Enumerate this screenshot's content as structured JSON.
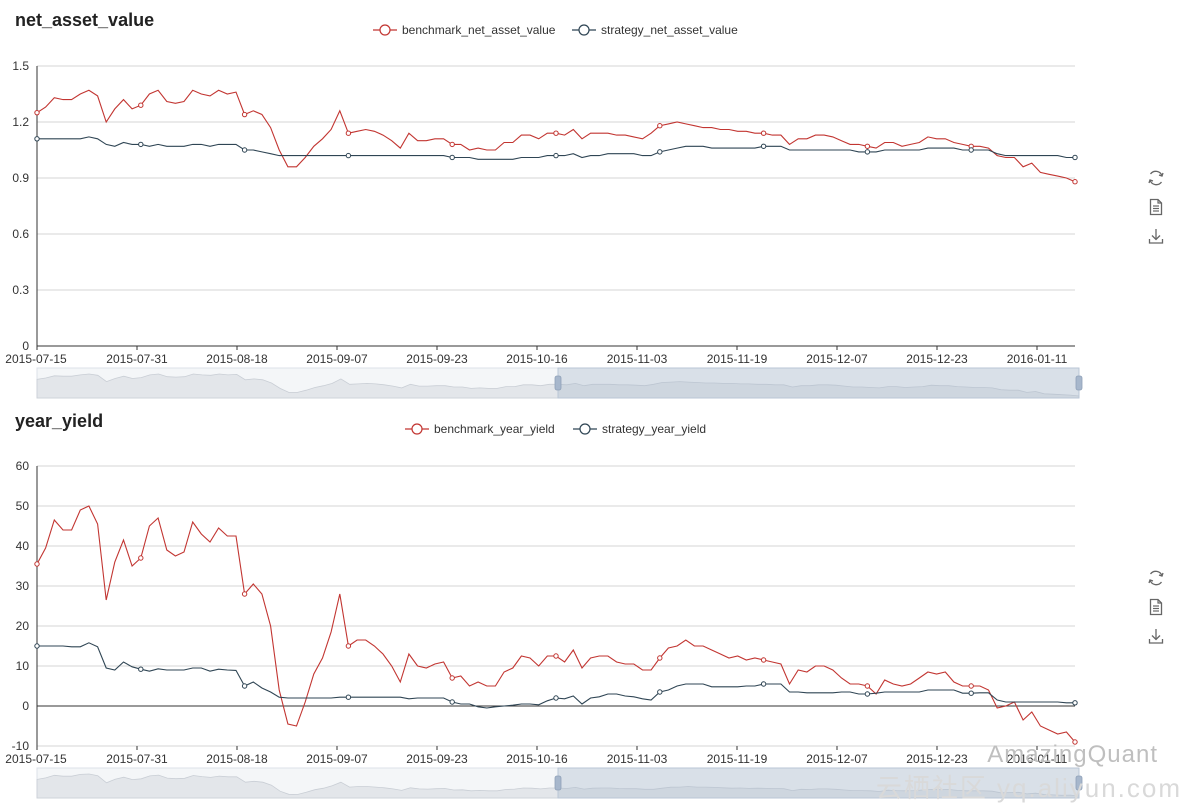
{
  "chart_data": [
    {
      "type": "line",
      "title": "net_asset_value",
      "xlabel": "",
      "ylabel": "",
      "ylim": [
        0,
        1.5
      ],
      "yticks": [
        0,
        0.3,
        0.6,
        0.9,
        1.2,
        1.5
      ],
      "x_tick_labels": [
        "2015-07-15",
        "2015-07-31",
        "2015-08-18",
        "2015-09-07",
        "2015-09-23",
        "2015-10-16",
        "2015-11-03",
        "2015-11-19",
        "2015-12-07",
        "2015-12-23",
        "2016-01-11"
      ],
      "grid": true,
      "legend_position": "top-center",
      "series": [
        {
          "name": "benchmark_net_asset_value",
          "color": "#c23531",
          "values": [
            1.25,
            1.28,
            1.33,
            1.32,
            1.32,
            1.35,
            1.37,
            1.34,
            1.2,
            1.27,
            1.32,
            1.27,
            1.29,
            1.35,
            1.37,
            1.31,
            1.3,
            1.31,
            1.37,
            1.35,
            1.34,
            1.37,
            1.35,
            1.36,
            1.24,
            1.26,
            1.24,
            1.17,
            1.05,
            0.96,
            0.96,
            1.01,
            1.07,
            1.11,
            1.16,
            1.26,
            1.14,
            1.15,
            1.16,
            1.15,
            1.13,
            1.1,
            1.06,
            1.14,
            1.1,
            1.1,
            1.11,
            1.11,
            1.08,
            1.08,
            1.05,
            1.06,
            1.05,
            1.05,
            1.09,
            1.09,
            1.13,
            1.13,
            1.11,
            1.14,
            1.14,
            1.13,
            1.16,
            1.11,
            1.14,
            1.14,
            1.14,
            1.13,
            1.13,
            1.12,
            1.11,
            1.14,
            1.18,
            1.19,
            1.2,
            1.19,
            1.18,
            1.17,
            1.17,
            1.16,
            1.16,
            1.15,
            1.15,
            1.14,
            1.14,
            1.13,
            1.13,
            1.08,
            1.11,
            1.11,
            1.13,
            1.13,
            1.12,
            1.1,
            1.08,
            1.08,
            1.07,
            1.06,
            1.09,
            1.09,
            1.07,
            1.08,
            1.09,
            1.12,
            1.11,
            1.11,
            1.09,
            1.08,
            1.07,
            1.07,
            1.06,
            1.02,
            1.01,
            1.01,
            0.96,
            0.98,
            0.93,
            0.92,
            0.91,
            0.9,
            0.88
          ]
        },
        {
          "name": "strategy_net_asset_value",
          "color": "#2f4554",
          "values": [
            1.11,
            1.11,
            1.11,
            1.11,
            1.11,
            1.11,
            1.12,
            1.11,
            1.08,
            1.07,
            1.09,
            1.08,
            1.08,
            1.07,
            1.08,
            1.07,
            1.07,
            1.07,
            1.08,
            1.08,
            1.07,
            1.08,
            1.08,
            1.08,
            1.05,
            1.05,
            1.04,
            1.03,
            1.02,
            1.02,
            1.02,
            1.02,
            1.02,
            1.02,
            1.02,
            1.02,
            1.02,
            1.02,
            1.02,
            1.02,
            1.02,
            1.02,
            1.02,
            1.02,
            1.02,
            1.02,
            1.02,
            1.02,
            1.01,
            1.01,
            1.01,
            1.0,
            1.0,
            1.0,
            1.0,
            1.0,
            1.01,
            1.01,
            1.01,
            1.02,
            1.02,
            1.02,
            1.03,
            1.01,
            1.02,
            1.02,
            1.03,
            1.03,
            1.03,
            1.03,
            1.02,
            1.02,
            1.04,
            1.05,
            1.06,
            1.07,
            1.07,
            1.07,
            1.06,
            1.06,
            1.06,
            1.06,
            1.06,
            1.06,
            1.07,
            1.07,
            1.07,
            1.05,
            1.05,
            1.05,
            1.05,
            1.05,
            1.05,
            1.05,
            1.05,
            1.04,
            1.04,
            1.04,
            1.05,
            1.05,
            1.05,
            1.05,
            1.05,
            1.06,
            1.06,
            1.06,
            1.06,
            1.05,
            1.05,
            1.05,
            1.05,
            1.03,
            1.02,
            1.02,
            1.02,
            1.02,
            1.02,
            1.02,
            1.02,
            1.01,
            1.01
          ]
        }
      ]
    },
    {
      "type": "line",
      "title": "year_yield",
      "xlabel": "",
      "ylabel": "",
      "ylim": [
        -10,
        60
      ],
      "yticks": [
        -10,
        0,
        10,
        20,
        30,
        40,
        50,
        60
      ],
      "x_tick_labels": [
        "2015-07-15",
        "2015-07-31",
        "2015-08-18",
        "2015-09-07",
        "2015-09-23",
        "2015-10-16",
        "2015-11-03",
        "2015-11-19",
        "2015-12-07",
        "2015-12-23",
        "2016-01-11"
      ],
      "grid": true,
      "legend_position": "top-center",
      "series": [
        {
          "name": "benchmark_year_yield",
          "color": "#c23531",
          "values": [
            35.5,
            39.5,
            46.5,
            44,
            44,
            49,
            50,
            45.5,
            26.5,
            36,
            41.5,
            35,
            37,
            45,
            47,
            39,
            37.5,
            38.5,
            46,
            43,
            41,
            44.5,
            42.5,
            42.5,
            28,
            30.5,
            28,
            20,
            4,
            -4.5,
            -5,
            1,
            8,
            12,
            18.5,
            28,
            15,
            16.5,
            16.5,
            15,
            13,
            10,
            6,
            13,
            10,
            9.5,
            10.5,
            11,
            7,
            7.5,
            5,
            6,
            5,
            5,
            8.5,
            9.5,
            12.5,
            12,
            10,
            12.5,
            12.5,
            11,
            14,
            9.5,
            12,
            12.5,
            12.5,
            11,
            10.5,
            10.5,
            9,
            9,
            12,
            14.5,
            15,
            16.5,
            15,
            15,
            14,
            13,
            12,
            12.5,
            11.5,
            12,
            11.5,
            11,
            10.5,
            5.5,
            9,
            8.5,
            10,
            10,
            9,
            7,
            5.5,
            5.5,
            5,
            3,
            6.5,
            5.5,
            5,
            5.5,
            7,
            8.5,
            8,
            8.5,
            6,
            5,
            5,
            5,
            4,
            -0.5,
            0,
            1,
            -3.5,
            -1.5,
            -5,
            -6,
            -7,
            -6.5,
            -9
          ]
        },
        {
          "name": "strategy_year_yield",
          "color": "#2f4554",
          "values": [
            15,
            15,
            15,
            15,
            14.8,
            14.8,
            15.8,
            14.8,
            9.5,
            9,
            11,
            9.8,
            9.2,
            8.7,
            9.3,
            9,
            9,
            9,
            9.5,
            9.5,
            8.7,
            9.2,
            9,
            8.9,
            5,
            6,
            4.5,
            3.5,
            2.2,
            2,
            2,
            2,
            2,
            2,
            2,
            2.2,
            2.2,
            2.2,
            2.2,
            2.2,
            2.2,
            2.2,
            2.2,
            1.8,
            2,
            2,
            2,
            2,
            1,
            0.5,
            0.5,
            -0.2,
            -0.5,
            -0.2,
            0,
            0.2,
            0.5,
            0.5,
            0.3,
            1.3,
            2,
            1.8,
            2.5,
            0.5,
            2,
            2.3,
            3,
            3,
            2.5,
            2.3,
            1.8,
            1.5,
            3.5,
            4,
            5,
            5.5,
            5.5,
            5.5,
            4.8,
            4.8,
            4.8,
            4.8,
            5,
            5,
            5.5,
            5.5,
            5.5,
            3.5,
            3.5,
            3.3,
            3.3,
            3.3,
            3.3,
            3.5,
            3.5,
            3,
            3,
            3.2,
            3.5,
            3.5,
            3.5,
            3.5,
            3.5,
            4,
            4,
            4,
            4,
            3.2,
            3.2,
            3.3,
            3.3,
            1.5,
            1,
            1,
            1,
            1,
            1,
            1,
            1,
            0.8,
            0.8
          ]
        }
      ]
    }
  ],
  "toolbox": {
    "restore_icon": "refresh-icon",
    "data_view_icon": "document-icon",
    "save_icon": "download-icon"
  },
  "watermark": {
    "brand": "AmazingQuant",
    "site": "云栖社区 yq.aliyun.com"
  }
}
